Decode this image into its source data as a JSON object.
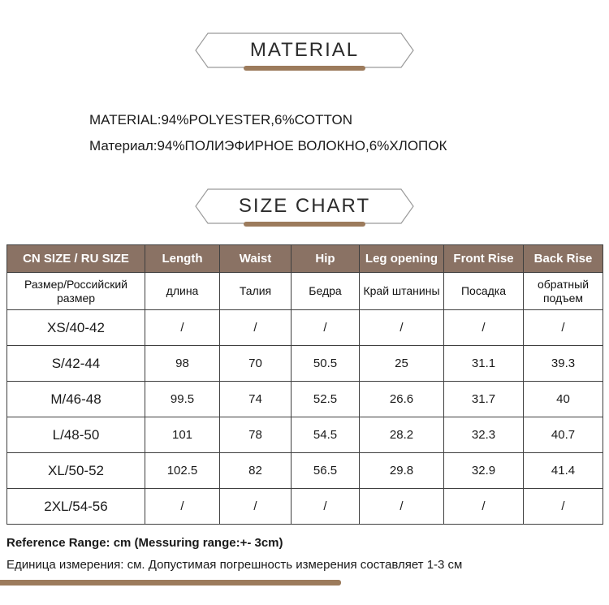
{
  "material": {
    "title": "MATERIAL",
    "line_en": "MATERIAL:94%POLYESTER,6%COTTON",
    "line_ru": "Материал:94%ПОЛИЭФИРНОЕ ВОЛОКНО,6%ХЛОПОК"
  },
  "size_chart": {
    "title": "SIZE CHART"
  },
  "table": {
    "header_en": [
      "CN SIZE / RU SIZE",
      "Length",
      "Waist",
      "Hip",
      "Leg opening",
      "Front Rise",
      "Back Rise"
    ],
    "header_ru": [
      "Размер/Российский размер",
      "длина",
      "Талия",
      "Бедра",
      "Край штанины",
      "Посадка",
      "обратный подъем"
    ],
    "rows": [
      {
        "size": "XS/40-42",
        "values": [
          "/",
          "/",
          "/",
          "/",
          "/",
          "/"
        ]
      },
      {
        "size": "S/42-44",
        "values": [
          "98",
          "70",
          "50.5",
          "25",
          "31.1",
          "39.3"
        ]
      },
      {
        "size": "M/46-48",
        "values": [
          "99.5",
          "74",
          "52.5",
          "26.6",
          "31.7",
          "40"
        ]
      },
      {
        "size": "L/48-50",
        "values": [
          "101",
          "78",
          "54.5",
          "28.2",
          "32.3",
          "40.7"
        ]
      },
      {
        "size": "XL/50-52",
        "values": [
          "102.5",
          "82",
          "56.5",
          "29.8",
          "32.9",
          "41.4"
        ]
      },
      {
        "size": "2XL/54-56",
        "values": [
          "/",
          "/",
          "/",
          "/",
          "/",
          "/"
        ]
      }
    ]
  },
  "footer": {
    "reference_en": "Reference Range: cm (Messuring range:+- 3cm)",
    "reference_ru": "Единица измерения: см. Допустимая погрешность измерения составляет 1-3 см"
  },
  "colors": {
    "header_bg": "#8a7264",
    "accent_bar": "#9c7b5c",
    "table_border": "#3f3f3f",
    "banner_border": "#9a9a9a",
    "text": "#1a1a1a"
  }
}
